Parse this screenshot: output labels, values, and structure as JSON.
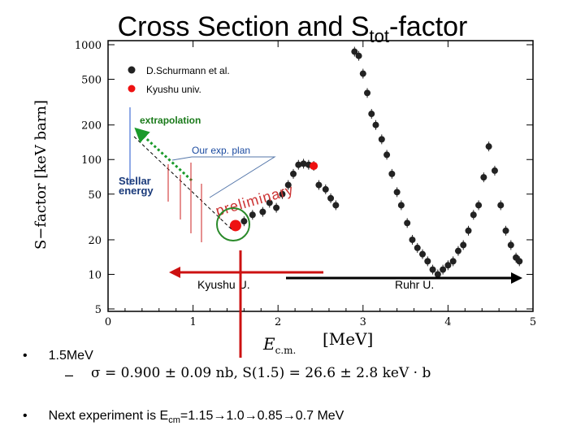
{
  "slide": {
    "title_main": "Cross Section and S",
    "title_sub": "tot",
    "title_tail": "-factor",
    "bullet1": "1.5MeV",
    "formula": "σ = 0.900 ± 0.09 nb,   S(1.5) = 26.6 ± 2.8 keV · b",
    "bullet2_pre": "Next experiment is E",
    "bullet2_sub": "cm",
    "bullet2_post": "=1.15→1.0→0.85→0.7 MeV"
  },
  "chart_data": {
    "type": "scatter",
    "ylabel": "S−factor  [keV barn]",
    "xlabel": "E",
    "xlabel_sub": "c.m.",
    "xlabel_unit": "[MeV]",
    "xlim": [
      0,
      5
    ],
    "ylim": [
      5,
      1000
    ],
    "yscale": "log",
    "x_ticks": [
      "0",
      "1",
      "2",
      "3",
      "4",
      "5"
    ],
    "y_ticks": [
      {
        "value": 1000,
        "label": "1000"
      },
      {
        "value": 500,
        "label": "500"
      },
      {
        "value": 200,
        "label": "200"
      },
      {
        "value": 100,
        "label": "100"
      },
      {
        "value": 50,
        "label": "50"
      },
      {
        "value": 20,
        "label": "20"
      },
      {
        "value": 10,
        "label": "10"
      },
      {
        "value": 5,
        "label": "5"
      }
    ],
    "legend": [
      {
        "label": "D.Schurmann et al.",
        "color": "#222222"
      },
      {
        "label": "Kyushu univ.",
        "color": "#ee1111"
      }
    ],
    "series": [
      {
        "name": "D.Schurmann et al.",
        "color": "#222222",
        "points": [
          [
            1.6,
            29
          ],
          [
            1.7,
            33
          ],
          [
            1.82,
            35
          ],
          [
            1.9,
            42
          ],
          [
            1.98,
            38
          ],
          [
            2.05,
            50
          ],
          [
            2.12,
            60
          ],
          [
            2.18,
            75
          ],
          [
            2.24,
            90
          ],
          [
            2.3,
            92
          ],
          [
            2.36,
            90
          ],
          [
            2.42,
            88
          ],
          [
            2.48,
            60
          ],
          [
            2.56,
            55
          ],
          [
            2.62,
            46
          ],
          [
            2.68,
            40
          ],
          [
            2.9,
            870
          ],
          [
            2.95,
            800
          ],
          [
            3.0,
            560
          ],
          [
            3.05,
            380
          ],
          [
            3.1,
            250
          ],
          [
            3.15,
            200
          ],
          [
            3.22,
            150
          ],
          [
            3.28,
            110
          ],
          [
            3.34,
            75
          ],
          [
            3.4,
            52
          ],
          [
            3.45,
            40
          ],
          [
            3.52,
            28
          ],
          [
            3.58,
            20
          ],
          [
            3.64,
            17
          ],
          [
            3.7,
            15
          ],
          [
            3.76,
            13
          ],
          [
            3.82,
            11
          ],
          [
            3.88,
            10
          ],
          [
            3.94,
            11
          ],
          [
            4.0,
            12
          ],
          [
            4.06,
            13
          ],
          [
            4.12,
            16
          ],
          [
            4.18,
            18
          ],
          [
            4.24,
            24
          ],
          [
            4.3,
            33
          ],
          [
            4.36,
            40
          ],
          [
            4.42,
            70
          ],
          [
            4.48,
            130
          ],
          [
            4.55,
            80
          ],
          [
            4.62,
            40
          ],
          [
            4.68,
            24
          ],
          [
            4.74,
            18
          ],
          [
            4.8,
            14
          ],
          [
            4.84,
            13
          ]
        ]
      },
      {
        "name": "Kyushu univ.",
        "color": "#ee1111",
        "points": [
          [
            1.5,
            26.6
          ],
          [
            2.42,
            88
          ]
        ]
      }
    ],
    "annotations": {
      "extrapolation": "extrapolation",
      "our_plan": "Our exp. plan",
      "stellar_energy_1": "Stellar",
      "stellar_energy_2": "energy",
      "preliminary": "preliminary",
      "kyushu_range": "Kyushu U.",
      "ruhr_range": "Ruhr U."
    }
  }
}
